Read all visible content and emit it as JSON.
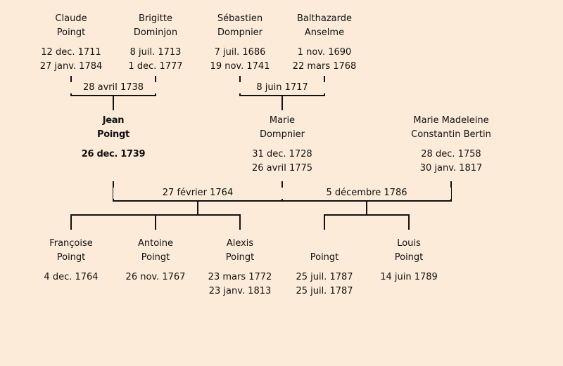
{
  "persons": {
    "claude": {
      "first": "Claude",
      "last": "Poingt",
      "birth": "12 dec. 1711",
      "death": "27 janv. 1784"
    },
    "brigitte": {
      "first": "Brigitte",
      "last": "Dominjon",
      "birth": "8 juil. 1713",
      "death": "1 dec. 1777"
    },
    "sebastien": {
      "first": "Sébastien",
      "last": "Dompnier",
      "birth": "7 juil. 1686",
      "death": "19 nov. 1741"
    },
    "balthazarde": {
      "first": "Balthazarde",
      "last": "Anselme",
      "birth": "1 nov. 1690",
      "death": "22 mars 1768"
    },
    "jean": {
      "first": "Jean",
      "last": "Poingt",
      "birth": "26 dec. 1739"
    },
    "marie": {
      "first": "Marie",
      "last": "Dompnier",
      "birth": "31 dec. 1728",
      "death": "26 avril 1775"
    },
    "marie_madeleine": {
      "first": "Marie Madeleine",
      "last": "Constantin Bertin",
      "birth": "28 dec. 1758",
      "death": "30 janv. 1817"
    },
    "francoise": {
      "first": "Françoise",
      "last": "Poingt",
      "birth": "4 dec. 1764"
    },
    "antoine": {
      "first": "Antoine",
      "last": "Poingt",
      "birth": "26 nov. 1767"
    },
    "alexis": {
      "first": "Alexis",
      "last": "Poingt",
      "birth": "23 mars 1772",
      "death": "23 janv. 1813"
    },
    "unnamed": {
      "last": "Poingt",
      "birth": "25 juil. 1787",
      "death": "25 juil. 1787"
    },
    "louis": {
      "first": "Louis",
      "last": "Poingt",
      "birth": "14 juin 1789"
    }
  },
  "marriages": {
    "claude_brigitte": "28 avril 1738",
    "sebastien_balthazarde": "8 juin 1717",
    "jean_marie": "27 février 1764",
    "jean_mariemadeleine": "5 décembre 1786"
  }
}
